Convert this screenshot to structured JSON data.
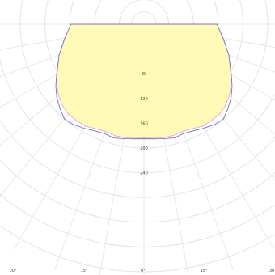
{
  "chart_data": {
    "type": "polar-line",
    "title": "",
    "r_ticks": [
      {
        "value": 80,
        "label": "80"
      },
      {
        "value": 120,
        "label": "120"
      },
      {
        "value": 160,
        "label": "160"
      },
      {
        "value": 200,
        "label": "200"
      },
      {
        "value": 240,
        "label": "240"
      }
    ],
    "angle_ticks": [
      {
        "value": -30,
        "label": "30°"
      },
      {
        "value": -15,
        "label": "15°"
      },
      {
        "value": 0,
        "label": "0°"
      },
      {
        "value": 15,
        "label": "15°"
      },
      {
        "value": 30,
        "label": "30"
      }
    ],
    "theta_deg": [
      -90,
      -80,
      -70,
      -60,
      -55,
      -50,
      -45,
      -40,
      -35,
      -30,
      -25,
      -20,
      -15,
      -10,
      -5,
      0,
      5,
      10,
      15,
      20,
      25,
      30,
      35,
      40,
      45,
      50,
      55,
      60,
      70,
      80,
      90
    ],
    "series": [
      {
        "color_fill": "#fffab8",
        "color_line": "#f0a0a0",
        "r": [
          118,
          130,
          146,
          162,
          172,
          180,
          186,
          190,
          190,
          190,
          186,
          184,
          186,
          186,
          185,
          184,
          185,
          186,
          186,
          184,
          186,
          190,
          190,
          190,
          186,
          180,
          172,
          162,
          146,
          130,
          118
        ]
      },
      {
        "color_line": "#7b6fc8",
        "r": [
          118,
          130,
          146,
          163,
          174,
          184,
          192,
          200,
          198,
          194,
          190,
          188,
          190,
          188,
          186,
          185,
          186,
          188,
          190,
          188,
          190,
          194,
          198,
          200,
          192,
          184,
          174,
          163,
          146,
          130,
          118
        ]
      }
    ],
    "grid": true
  }
}
